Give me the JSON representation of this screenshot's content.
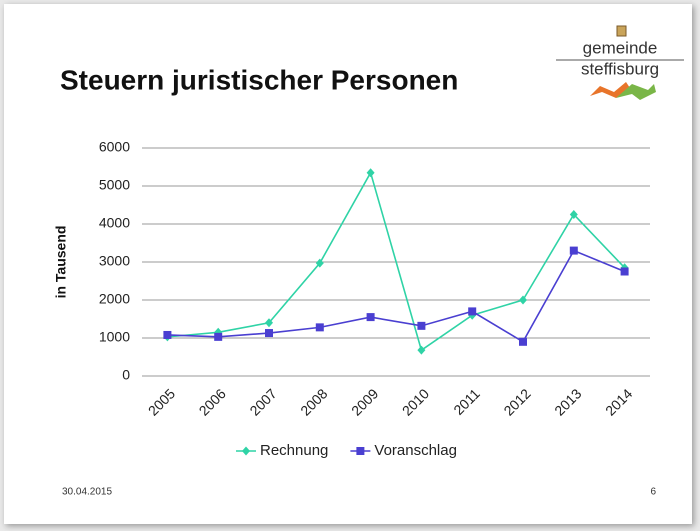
{
  "chart_data": {
    "type": "line",
    "title": "Steuern juristischer Personen",
    "y_label": "in Tausend",
    "categories": [
      "2005",
      "2006",
      "2007",
      "2008",
      "2009",
      "2010",
      "2011",
      "2012",
      "2013",
      "2014"
    ],
    "series": [
      {
        "name": "Rechnung",
        "color": "#2fd3a6",
        "marker": "diamond",
        "values": [
          1030,
          1150,
          1400,
          2970,
          5350,
          680,
          1600,
          2000,
          4250,
          2850
        ]
      },
      {
        "name": "Voranschlag",
        "color": "#4a3fd1",
        "marker": "square",
        "values": [
          1080,
          1030,
          1130,
          1280,
          1550,
          1320,
          1700,
          900,
          3300,
          2750
        ]
      }
    ],
    "ylim": [
      0,
      6000
    ],
    "yticks": [
      0,
      1000,
      2000,
      3000,
      4000,
      5000,
      6000
    ],
    "grid": true,
    "legend": "bottom"
  },
  "logo": {
    "line1": "gemeinde",
    "line2": "steffisburg"
  },
  "footer": {
    "date": "30.04.2015",
    "page": "6"
  }
}
